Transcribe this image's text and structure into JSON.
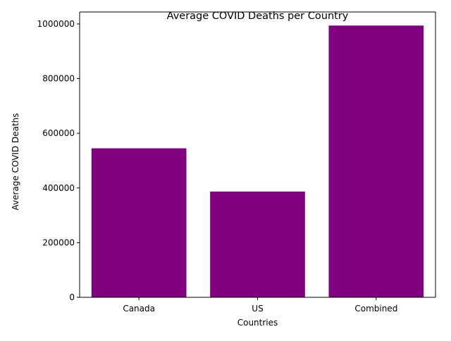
{
  "chart_data": {
    "type": "bar",
    "title": "Average COVID Deaths per Country",
    "xlabel": "Countries",
    "ylabel": "Average COVID Deaths",
    "categories": [
      "Canada",
      "US",
      "Combined"
    ],
    "values": [
      545000,
      387000,
      994000
    ],
    "ylim": [
      0,
      1043700
    ],
    "yticks": [
      0,
      200000,
      400000,
      600000,
      800000,
      1000000
    ],
    "ytick_labels": [
      "0",
      "200000",
      "400000",
      "600000",
      "800000",
      "1000000"
    ],
    "bar_color": "#800080",
    "grid": false,
    "legend": "none"
  }
}
